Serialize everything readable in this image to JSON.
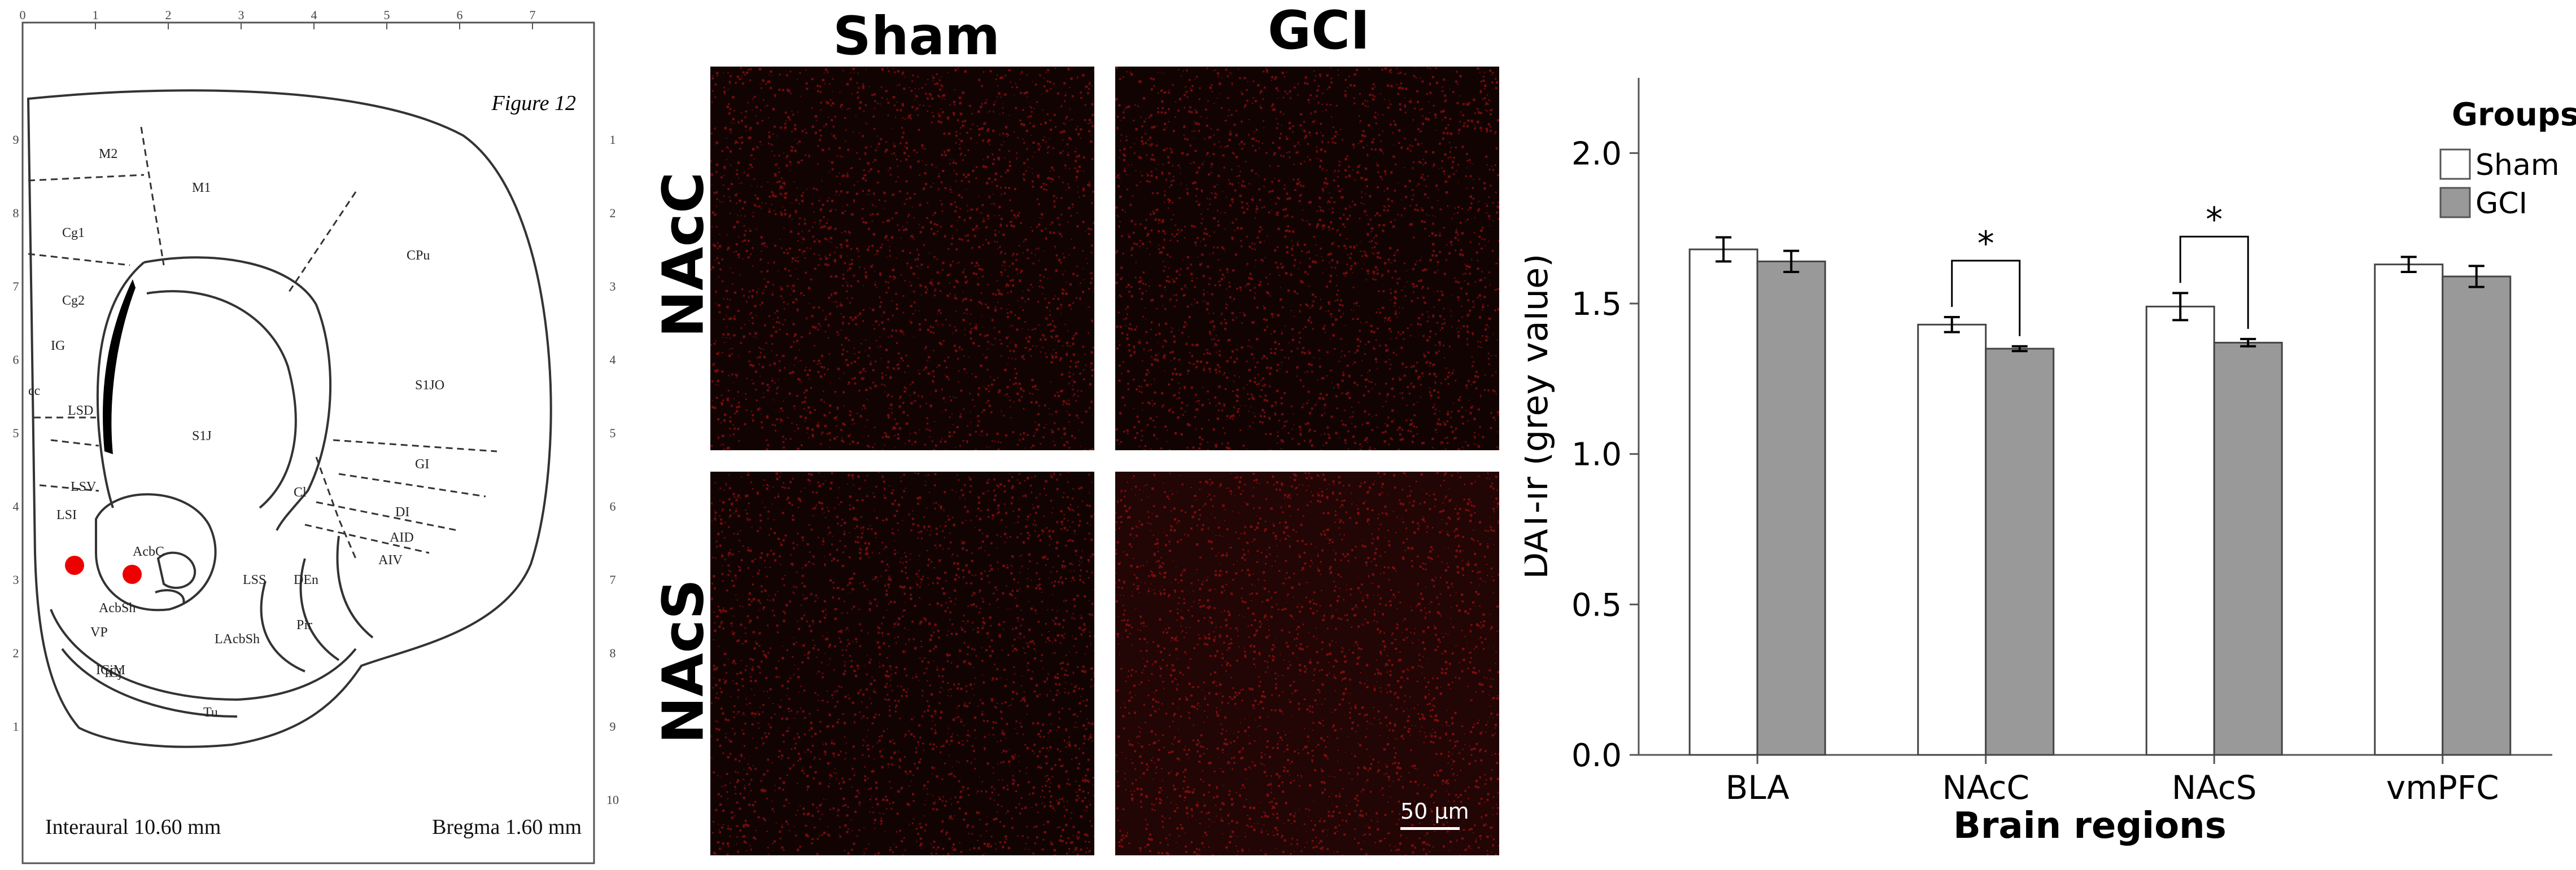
{
  "atlas": {
    "figure_label": "Figure 12",
    "interaural": "Interaural 10.60 mm",
    "bregma": "Bregma 1.60 mm",
    "top_ticks": [
      "0",
      "1",
      "2",
      "3",
      "4",
      "5",
      "6",
      "7"
    ],
    "left_ticks": [
      "9",
      "8",
      "7",
      "6",
      "5",
      "4",
      "3",
      "2",
      "1"
    ],
    "right_ticks": [
      "1",
      "2",
      "3",
      "4",
      "5",
      "6",
      "7",
      "8",
      "9",
      "10"
    ],
    "region_labels": [
      "M2",
      "M1",
      "Cg1",
      "Cg2",
      "S1J",
      "CPu",
      "S1JO",
      "GI",
      "DI",
      "AID",
      "AIV",
      "LSD",
      "LSV",
      "LSI",
      "AcbC",
      "AcbSh",
      "LSS",
      "DEn",
      "Pir",
      "Cl",
      "VP",
      "LAcbSh",
      "ICj",
      "Tu",
      "IG",
      "cc",
      "ICjM"
    ],
    "marker_color": "#ee0000"
  },
  "micrographs": {
    "col_headers": [
      "Sham",
      "GCI"
    ],
    "row_labels": [
      "NAcC",
      "NAcS"
    ],
    "scale_bar": "50 µm",
    "stain_color": "#c41414"
  },
  "chart_data": {
    "type": "bar",
    "categories": [
      "BLA",
      "NAcC",
      "NAcS",
      "vmPFC"
    ],
    "series": [
      {
        "name": "Sham",
        "values": [
          1.68,
          1.43,
          1.49,
          1.63
        ],
        "errors": [
          0.04,
          0.025,
          0.045,
          0.025
        ],
        "color": "#ffffff"
      },
      {
        "name": "GCI",
        "values": [
          1.64,
          1.35,
          1.37,
          1.59
        ],
        "errors": [
          0.035,
          0.008,
          0.012,
          0.035
        ],
        "color": "#999999"
      }
    ],
    "significance": [
      {
        "category": "NAcC",
        "label": "*"
      },
      {
        "category": "NAcS",
        "label": "*"
      }
    ],
    "xlabel": "Brain regions",
    "ylabel": "DAT-ir (grey value)",
    "ylim": [
      0,
      2.25
    ],
    "yticks": [
      0.0,
      0.5,
      1.0,
      1.5,
      2.0
    ],
    "ytick_labels": [
      "0.0",
      "0.5",
      "1.0",
      "1.5",
      "2.0"
    ],
    "legend": {
      "title": "Groups",
      "position": "top-right"
    },
    "grid": false
  }
}
